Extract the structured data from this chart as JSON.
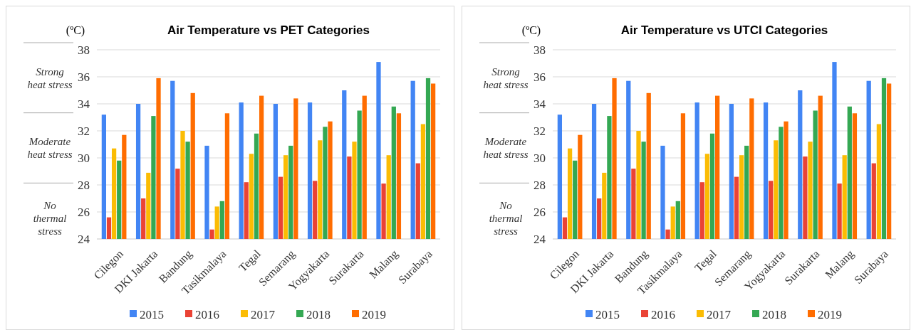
{
  "chart_data": [
    {
      "type": "bar",
      "title": "Air Temperature vs PET Categories",
      "ylabel": "(ºC)",
      "categories": [
        "Cilegon",
        "DKI Jakarta",
        "Bandung",
        "Tasikmalaya",
        "Tegal",
        "Semarang",
        "Yogyakarta",
        "Surakarta",
        "Malang",
        "Surabaya"
      ],
      "series": [
        {
          "name": "2015",
          "color": "#4285f4",
          "values": [
            33.2,
            34.0,
            35.7,
            30.9,
            34.1,
            34.0,
            34.1,
            35.0,
            37.1,
            35.7
          ]
        },
        {
          "name": "2016",
          "color": "#ea4335",
          "values": [
            25.6,
            27.0,
            29.2,
            24.7,
            28.2,
            28.6,
            28.3,
            30.1,
            28.1,
            29.6
          ]
        },
        {
          "name": "2017",
          "color": "#fbbc04",
          "values": [
            30.7,
            28.9,
            32.0,
            26.4,
            30.3,
            30.2,
            31.3,
            31.2,
            30.2,
            32.5
          ]
        },
        {
          "name": "2018",
          "color": "#34a853",
          "values": [
            29.8,
            33.1,
            31.2,
            26.8,
            31.8,
            30.9,
            32.3,
            33.5,
            33.8,
            35.9
          ]
        },
        {
          "name": "2019",
          "color": "#ff6d01",
          "values": [
            31.7,
            35.9,
            34.8,
            33.3,
            34.6,
            34.4,
            32.7,
            34.6,
            33.3,
            35.5
          ]
        }
      ],
      "ylim": [
        24,
        38
      ],
      "yticks": [
        24,
        26,
        28,
        30,
        32,
        34,
        36,
        38
      ],
      "grid": "y",
      "legend": "bottom",
      "annotations": [
        "Strong\nheat stress",
        "Moderate\nheat stress",
        "No\nthermal\nstress"
      ]
    },
    {
      "type": "bar",
      "title": "Air Temperature vs UTCI Categories",
      "ylabel": "(ºC)",
      "categories": [
        "Cilegon",
        "DKI Jakarta",
        "Bandung",
        "Tasikmalaya",
        "Tegal",
        "Semarang",
        "Yogyakarta",
        "Surakarta",
        "Malang",
        "Surabaya"
      ],
      "series": [
        {
          "name": "2015",
          "color": "#4285f4",
          "values": [
            33.2,
            34.0,
            35.7,
            30.9,
            34.1,
            34.0,
            34.1,
            35.0,
            37.1,
            35.7
          ]
        },
        {
          "name": "2016",
          "color": "#ea4335",
          "values": [
            25.6,
            27.0,
            29.2,
            24.7,
            28.2,
            28.6,
            28.3,
            30.1,
            28.1,
            29.6
          ]
        },
        {
          "name": "2017",
          "color": "#fbbc04",
          "values": [
            30.7,
            28.9,
            32.0,
            26.4,
            30.3,
            30.2,
            31.3,
            31.2,
            30.2,
            32.5
          ]
        },
        {
          "name": "2018",
          "color": "#34a853",
          "values": [
            29.8,
            33.1,
            31.2,
            26.8,
            31.8,
            30.9,
            32.3,
            33.5,
            33.8,
            35.9
          ]
        },
        {
          "name": "2019",
          "color": "#ff6d01",
          "values": [
            31.7,
            35.9,
            34.8,
            33.3,
            34.6,
            34.4,
            32.7,
            34.6,
            33.3,
            35.5
          ]
        }
      ],
      "ylim": [
        24,
        38
      ],
      "yticks": [
        24,
        26,
        28,
        30,
        32,
        34,
        36,
        38
      ],
      "grid": "y",
      "legend": "bottom",
      "annotations": [
        "Strong\nheat stress",
        "Moderate\nheat stress",
        "No\nthermal\nstress"
      ]
    }
  ]
}
